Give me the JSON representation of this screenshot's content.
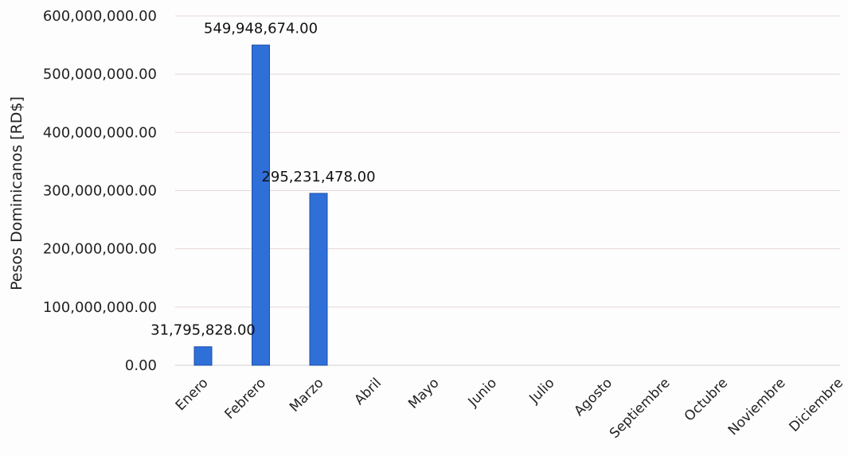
{
  "chart_data": {
    "type": "bar",
    "title": "",
    "xlabel": "",
    "ylabel": "Pesos Dominicanos [RD$]",
    "categories": [
      "Enero",
      "Febrero",
      "Marzo",
      "Abril",
      "Mayo",
      "Junio",
      "Julio",
      "Agosto",
      "Septiembre",
      "Octubre",
      "Noviembre",
      "Diciembre"
    ],
    "values": [
      31795828,
      549948674,
      295231478,
      null,
      null,
      null,
      null,
      null,
      null,
      null,
      null,
      null
    ],
    "data_labels": [
      "31,795,828.00",
      "549,948,674.00",
      "295,231,478.00",
      "",
      "",
      "",
      "",
      "",
      "",
      "",
      "",
      ""
    ],
    "ylim": [
      0,
      600000000
    ],
    "yticks": [
      0,
      100000000,
      200000000,
      300000000,
      400000000,
      500000000,
      600000000
    ],
    "ytick_labels": [
      "0.00",
      "100,000,000.00",
      "200,000,000.00",
      "300,000,000.00",
      "400,000,000.00",
      "500,000,000.00",
      "600,000,000.00"
    ],
    "grid": true,
    "legend": "none",
    "bar_color": "#2f6fd8",
    "bar_edge_color": "#1f4fa8",
    "grid_color": "#e6d6d6"
  }
}
